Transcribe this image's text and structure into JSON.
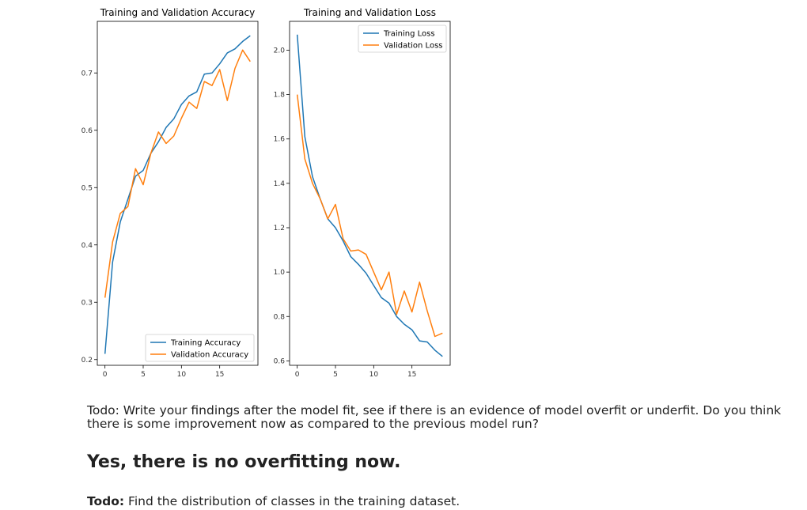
{
  "chart_data": [
    {
      "type": "line",
      "title": "Training and Validation Accuracy",
      "xlabel": "",
      "ylabel": "",
      "xlim": [
        -1,
        20
      ],
      "ylim": [
        0.19,
        0.79
      ],
      "xticks": [
        0,
        5,
        10,
        15
      ],
      "yticks": [
        0.2,
        0.3,
        0.4,
        0.5,
        0.6,
        0.7
      ],
      "legend_position": "lower-right",
      "x": [
        0,
        1,
        2,
        3,
        4,
        5,
        6,
        7,
        8,
        9,
        10,
        11,
        12,
        13,
        14,
        15,
        16,
        17,
        18,
        19
      ],
      "series": [
        {
          "name": "Training Accuracy",
          "color": "#1f77b4",
          "values": [
            0.21,
            0.37,
            0.44,
            0.48,
            0.52,
            0.53,
            0.56,
            0.58,
            0.605,
            0.62,
            0.645,
            0.66,
            0.667,
            0.698,
            0.7,
            0.716,
            0.735,
            0.742,
            0.755,
            0.765
          ]
        },
        {
          "name": "Validation Accuracy",
          "color": "#ff7f0e",
          "values": [
            0.308,
            0.405,
            0.455,
            0.467,
            0.533,
            0.505,
            0.56,
            0.597,
            0.577,
            0.59,
            0.621,
            0.649,
            0.638,
            0.685,
            0.678,
            0.706,
            0.652,
            0.708,
            0.74,
            0.72
          ]
        }
      ]
    },
    {
      "type": "line",
      "title": "Training and Validation Loss",
      "xlabel": "",
      "ylabel": "",
      "xlim": [
        -1,
        20
      ],
      "ylim": [
        0.58,
        2.13
      ],
      "xticks": [
        0,
        5,
        10,
        15
      ],
      "yticks": [
        0.6,
        0.8,
        1.0,
        1.2,
        1.4,
        1.6,
        1.8,
        2.0
      ],
      "legend_position": "upper-right",
      "x": [
        0,
        1,
        2,
        3,
        4,
        5,
        6,
        7,
        8,
        9,
        10,
        11,
        12,
        13,
        14,
        15,
        16,
        17,
        18,
        19
      ],
      "series": [
        {
          "name": "Training Loss",
          "color": "#1f77b4",
          "values": [
            2.07,
            1.61,
            1.43,
            1.33,
            1.24,
            1.2,
            1.14,
            1.07,
            1.035,
            0.995,
            0.94,
            0.885,
            0.86,
            0.8,
            0.765,
            0.74,
            0.69,
            0.685,
            0.648,
            0.62
          ]
        },
        {
          "name": "Validation Loss",
          "color": "#ff7f0e",
          "values": [
            1.8,
            1.51,
            1.4,
            1.33,
            1.24,
            1.305,
            1.15,
            1.095,
            1.1,
            1.08,
            1.0,
            0.92,
            1.0,
            0.81,
            0.915,
            0.82,
            0.955,
            0.825,
            0.71,
            0.725
          ]
        }
      ]
    }
  ],
  "notes": {
    "todo1": "Todo: Write your findings after the model fit, see if there is an evidence of model overfit or underfit. Do you think there is some improvement now as compared to the previous model run?",
    "answer": "Yes, there is no overfitting now.",
    "todo2_label": "Todo:",
    "todo2_text": " Find the distribution of classes in the training dataset."
  }
}
